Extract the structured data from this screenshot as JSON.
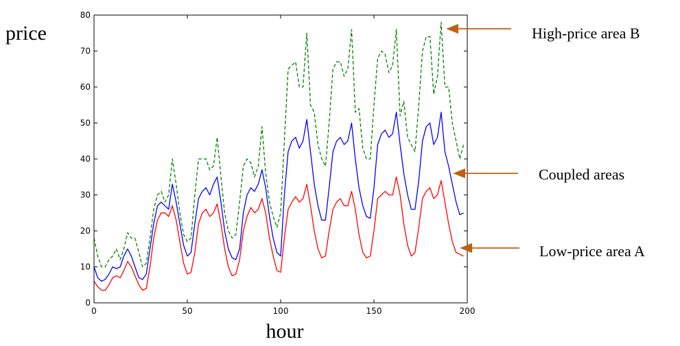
{
  "chart_data": {
    "type": "line",
    "xlabel": "hour",
    "ylabel": "price",
    "xlim": [
      0,
      200
    ],
    "xticks": [
      0,
      50,
      100,
      150,
      200
    ],
    "ylim": [
      0,
      80
    ],
    "yticks": [
      0,
      10,
      20,
      30,
      40,
      50,
      60,
      70,
      80
    ],
    "grid": false,
    "x": [
      0,
      2,
      4,
      6,
      8,
      10,
      12,
      14,
      16,
      18,
      20,
      22,
      24,
      26,
      28,
      30,
      32,
      34,
      36,
      38,
      40,
      42,
      44,
      46,
      48,
      50,
      52,
      54,
      56,
      58,
      60,
      62,
      64,
      66,
      68,
      70,
      72,
      74,
      76,
      78,
      80,
      82,
      84,
      86,
      88,
      90,
      92,
      94,
      96,
      98,
      100,
      102,
      104,
      106,
      108,
      110,
      112,
      114,
      116,
      118,
      120,
      122,
      124,
      126,
      128,
      130,
      132,
      134,
      136,
      138,
      140,
      142,
      144,
      146,
      148,
      150,
      152,
      154,
      156,
      158,
      160,
      162,
      164,
      166,
      168,
      170,
      172,
      174,
      176,
      178,
      180,
      182,
      184,
      186,
      188,
      190,
      192,
      194,
      196,
      198
    ],
    "series": [
      {
        "name": "Coupled areas",
        "color": "#0000ff",
        "style": "solid",
        "values": [
          10,
          7,
          6,
          6.5,
          8,
          10,
          9.5,
          10,
          13,
          15,
          13,
          10,
          7,
          6.5,
          8,
          15,
          22,
          27,
          28,
          27,
          26,
          33,
          28,
          22,
          16,
          13,
          14,
          22,
          29,
          31,
          32,
          30,
          33,
          35,
          28,
          20,
          15,
          12.5,
          12,
          15,
          25,
          30,
          32,
          31,
          33,
          37,
          32,
          24,
          18,
          14,
          13,
          30,
          42,
          45,
          46,
          43,
          45,
          51,
          42,
          33,
          27,
          23,
          23,
          32,
          42,
          45,
          46,
          44,
          45,
          50,
          40,
          32,
          27,
          24,
          23.5,
          32,
          44,
          47,
          48,
          46,
          47,
          53,
          44,
          36,
          30,
          26,
          26,
          34,
          45,
          49,
          50,
          44,
          46,
          53,
          42,
          38,
          33,
          28,
          24.5,
          25
        ]
      },
      {
        "name": "Low-price area A",
        "color": "#ff0000",
        "style": "solid",
        "values": [
          6,
          4.5,
          3.5,
          3.5,
          5,
          7,
          7.5,
          7,
          9,
          11.5,
          10,
          7.5,
          5,
          3.5,
          4,
          10,
          18,
          23,
          25,
          25,
          24,
          27,
          23,
          17,
          11,
          8,
          8.5,
          14,
          22,
          25,
          26,
          24,
          25,
          27.5,
          22,
          15,
          10,
          7.5,
          8,
          12,
          20,
          24,
          26.5,
          25,
          26,
          29,
          25,
          18,
          13,
          9,
          8.5,
          18,
          26,
          28,
          29.5,
          28,
          29,
          33,
          27,
          20,
          15,
          12.5,
          13,
          20,
          26,
          28,
          29,
          27,
          27,
          31,
          26,
          19,
          14,
          12.5,
          13,
          20,
          29,
          30,
          31,
          30,
          30,
          35,
          30,
          22,
          16,
          13,
          14,
          21,
          29,
          31,
          32,
          29,
          30,
          34,
          28,
          22,
          17,
          14,
          13.5,
          13
        ]
      },
      {
        "name": "High-price area B",
        "color": "#008000",
        "style": "dashed",
        "values": [
          18,
          13,
          10,
          10,
          12,
          13,
          15,
          12,
          15,
          19.5,
          18,
          18,
          14,
          10,
          11,
          18,
          26,
          30,
          31,
          28,
          30,
          40,
          33,
          25,
          19,
          17,
          18,
          30,
          40,
          40,
          40,
          37,
          38,
          46,
          35,
          25,
          20,
          18,
          19,
          28,
          38,
          40,
          39,
          35,
          38,
          49,
          36,
          28,
          24,
          21,
          25,
          45,
          65,
          66,
          67,
          60,
          60,
          75,
          55,
          53,
          44,
          40,
          38,
          50,
          65,
          67,
          67,
          63,
          65,
          76,
          53,
          54,
          43,
          40,
          40,
          55,
          68,
          70,
          69,
          64,
          66,
          76,
          52,
          56,
          46,
          44,
          42,
          55,
          70,
          74,
          74,
          58,
          63,
          78,
          60,
          60,
          50,
          45,
          40,
          44
        ]
      }
    ]
  }
}
